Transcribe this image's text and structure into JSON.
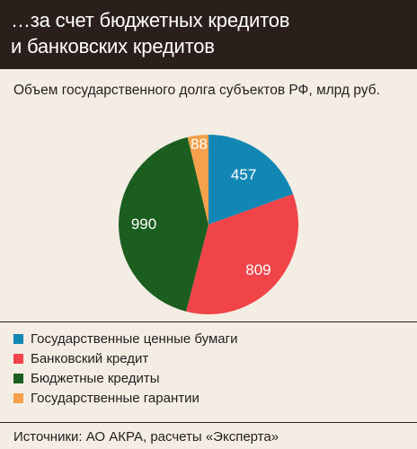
{
  "header": {
    "title_line1": "…за счет бюджетных кредитов",
    "title_line2": "и банковских кредитов"
  },
  "chart_data": {
    "type": "pie",
    "title": "Объем государственного долга субъектов РФ, млрд руб.",
    "slices": [
      {
        "label": "Государственные ценные бумаги",
        "value": 457,
        "color": "#1387b4"
      },
      {
        "label": "Банковский кредит",
        "value": 809,
        "color": "#f04448"
      },
      {
        "label": "Бюджетные кредиты",
        "value": 990,
        "color": "#1b5e20"
      },
      {
        "label": "Государственные гарантии",
        "value": 88,
        "color": "#f5a04a"
      }
    ],
    "legend_position": "bottom"
  },
  "footer": {
    "source": "Источники: АО АКРА, расчеты «Эксперта»"
  }
}
